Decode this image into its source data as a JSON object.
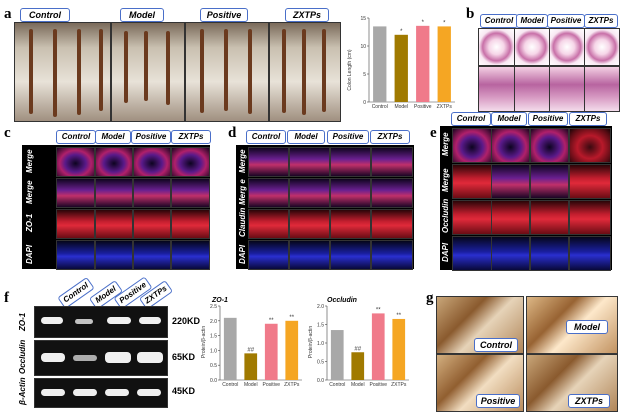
{
  "panel_labels": {
    "a": "a",
    "b": "b",
    "c": "c",
    "d": "d",
    "e": "e",
    "f": "f",
    "g": "g"
  },
  "groups": [
    "Control",
    "Model",
    "Positive",
    "ZXTPs"
  ],
  "rows_c": [
    "Merge",
    "Merge",
    "ZO-1",
    "DAPI"
  ],
  "rows_d": [
    "Merge",
    "Merg e",
    "Claudin",
    "DAPI"
  ],
  "rows_e": [
    "Merge",
    "Merge",
    "Occludin",
    "DAPI"
  ],
  "western": {
    "rows": [
      "ZO-1",
      "Occludin",
      "β-Actin"
    ],
    "sizes": [
      "220KD",
      "65KD",
      "45KD"
    ]
  },
  "chart_data": [
    {
      "type": "bar",
      "title": "",
      "categories": [
        "Control",
        "Model",
        "Positive",
        "ZXTPs"
      ],
      "values": [
        13.5,
        12.0,
        13.6,
        13.5
      ],
      "annotations": [
        "",
        "*",
        "*",
        "*"
      ],
      "ylabel": "Colon Length (cm)",
      "ylim": [
        0,
        15
      ],
      "yticks": [
        "0",
        "5",
        "10",
        "15"
      ],
      "colors": [
        "#a8a8a8",
        "#a07a00",
        "#f07a8a",
        "#f5a623"
      ]
    },
    {
      "type": "bar",
      "title": "ZO-1",
      "categories": [
        "Control",
        "Model",
        "Positive",
        "ZXTPs"
      ],
      "values": [
        2.1,
        0.9,
        1.9,
        2.0
      ],
      "annotations": [
        "",
        "##",
        "**",
        "**"
      ],
      "ylabel": "Protein/β-actin",
      "ylim": [
        0,
        2.5
      ],
      "yticks": [
        "0.0",
        "0.5",
        "1.0",
        "1.5",
        "2.0",
        "2.5"
      ],
      "colors": [
        "#a8a8a8",
        "#a07a00",
        "#f07a8a",
        "#f5a623"
      ]
    },
    {
      "type": "bar",
      "title": "Occludin",
      "categories": [
        "Control",
        "Model",
        "Positive",
        "ZXTPs"
      ],
      "values": [
        1.35,
        0.75,
        1.8,
        1.65
      ],
      "annotations": [
        "",
        "##",
        "**",
        "**"
      ],
      "ylabel": "Protein/β-actin",
      "ylim": [
        0,
        2.0
      ],
      "yticks": [
        "0.0",
        "0.5",
        "1.0",
        "1.5",
        "2.0"
      ],
      "colors": [
        "#a8a8a8",
        "#a07a00",
        "#f07a8a",
        "#f5a623"
      ]
    }
  ]
}
